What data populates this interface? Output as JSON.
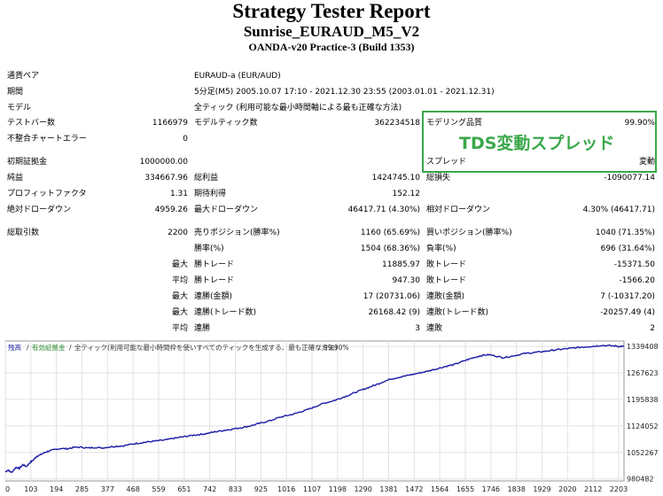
{
  "header": {
    "title": "Strategy Tester Report",
    "subtitle": "Sunrise_EURAUD_M5_V2",
    "server": "OANDA-v20 Practice-3 (Build 1353)"
  },
  "settings": {
    "symbol_label": "通貨ペア",
    "symbol_value": "EURAUD-a (EUR/AUD)",
    "period_label": "期間",
    "period_value": "5分足(M5) 2005.10.07 17:10 - 2021.12.30 23:55 (2003.01.01 - 2021.12.31)",
    "model_label": "モデル",
    "model_value": "全ティック (利用可能な最小時間軸による最も正確な方法)"
  },
  "stats": {
    "bars_label": "テストバー数",
    "bars_value": "1166979",
    "ticks_label": "モデルティック数",
    "ticks_value": "362234518",
    "quality_label": "モデリング品質",
    "quality_value": "99.90%",
    "mismatch_label": "不整合チャートエラー",
    "mismatch_value": "0",
    "spread_label": "スプレッド",
    "spread_value": "変動",
    "highlight_text": "TDS変動スプレッド",
    "deposit_label": "初期証拠金",
    "deposit_value": "1000000.00",
    "net_label": "純益",
    "net_value": "334667.96",
    "gross_profit_label": "総利益",
    "gross_profit_value": "1424745.10",
    "gross_loss_label": "総損失",
    "gross_loss_value": "-1090077.14",
    "pf_label": "プロフィットファクタ",
    "pf_value": "1.31",
    "expected_label": "期待利得",
    "expected_value": "152.12",
    "abs_dd_label": "絶対ドローダウン",
    "abs_dd_value": "4959.26",
    "max_dd_label": "最大ドローダウン",
    "max_dd_value": "46417.71 (4.30%)",
    "rel_dd_label": "相対ドローダウン",
    "rel_dd_value": "4.30% (46417.71)"
  },
  "trades": {
    "total_label": "総取引数",
    "total_value": "2200",
    "short_label": "売りポジション(勝率%)",
    "short_value": "1160 (65.69%)",
    "long_label": "買いポジション(勝率%)",
    "long_value": "1040 (71.35%)",
    "win_label": "勝率(%)",
    "win_value": "1504 (68.36%)",
    "loss_label": "負率(%)",
    "loss_value": "696 (31.64%)",
    "max_word": "最大",
    "avg_word": "平均",
    "win_trade_label": "勝トレード",
    "loss_trade_label": "敗トレード",
    "max_win_value": "11885.97",
    "max_loss_value": "-15371.50",
    "avg_win_value": "947.30",
    "avg_loss_value": "-1566.20",
    "cons_win_amount_label": "連勝(金額)",
    "cons_win_amount_value": "17 (20731.06)",
    "cons_loss_amount_label": "連敗(金額)",
    "cons_loss_amount_value": "7 (-10317.20)",
    "cons_win_count_label": "連勝(トレード数)",
    "cons_win_count_value": "26168.42 (9)",
    "cons_loss_count_label": "連敗(トレード数)",
    "cons_loss_count_value": "-20257.49 (4)",
    "avg_cons_win_label": "連勝",
    "avg_cons_win_value": "3",
    "avg_cons_loss_label": "連敗",
    "avg_cons_loss_value": "2"
  },
  "chart_data": {
    "type": "line",
    "legend_balance": "残高",
    "legend_sep1": "/",
    "legend_lot": "有効証拠金",
    "legend_sep2": "/",
    "legend_model": "全ティック(利用可能な最小時間枠を使いすべてのティックを生成する、最も正確な方法)",
    "legend_sep3": "/",
    "legend_quality": "99.90%",
    "colors": {
      "balance": "#1a1aa6",
      "equity": "#2e8b2e",
      "grid": "#e2e2e2"
    },
    "x_ticks": [
      0,
      103,
      194,
      285,
      377,
      468,
      559,
      651,
      742,
      833,
      925,
      1016,
      1107,
      1198,
      1290,
      1381,
      1472,
      1564,
      1655,
      1746,
      1838,
      1929,
      2020,
      2112,
      2203
    ],
    "y_ticks": [
      980482,
      1052267,
      1124052,
      1195838,
      1267623,
      1339408
    ],
    "xlim": [
      0,
      2200
    ],
    "ylim": [
      975000,
      1354000
    ],
    "points": [
      [
        0,
        1000000
      ],
      [
        10,
        1004000
      ],
      [
        22,
        998000
      ],
      [
        38,
        1012000
      ],
      [
        50,
        1009000
      ],
      [
        62,
        1019000
      ],
      [
        75,
        1014000
      ],
      [
        88,
        1025000
      ],
      [
        100,
        1032000
      ],
      [
        112,
        1042000
      ],
      [
        125,
        1046000
      ],
      [
        140,
        1052000
      ],
      [
        155,
        1056000
      ],
      [
        175,
        1060000
      ],
      [
        198,
        1063000
      ],
      [
        220,
        1062000
      ],
      [
        245,
        1066000
      ],
      [
        270,
        1066500
      ],
      [
        295,
        1064000
      ],
      [
        320,
        1066000
      ],
      [
        345,
        1064500
      ],
      [
        370,
        1067000
      ],
      [
        395,
        1069000
      ],
      [
        420,
        1070000
      ],
      [
        445,
        1074000
      ],
      [
        470,
        1077000
      ],
      [
        495,
        1079500
      ],
      [
        520,
        1082000
      ],
      [
        545,
        1084000
      ],
      [
        570,
        1086000
      ],
      [
        595,
        1090000
      ],
      [
        620,
        1093000
      ],
      [
        645,
        1096000
      ],
      [
        670,
        1099000
      ],
      [
        695,
        1101000
      ],
      [
        720,
        1104000
      ],
      [
        745,
        1108000
      ],
      [
        770,
        1111000
      ],
      [
        795,
        1114000
      ],
      [
        820,
        1117000
      ],
      [
        845,
        1120000
      ],
      [
        870,
        1124000
      ],
      [
        895,
        1129000
      ],
      [
        920,
        1134000
      ],
      [
        945,
        1139000
      ],
      [
        970,
        1146000
      ],
      [
        995,
        1151000
      ],
      [
        1020,
        1155000
      ],
      [
        1045,
        1161000
      ],
      [
        1070,
        1167000
      ],
      [
        1095,
        1174000
      ],
      [
        1120,
        1182000
      ],
      [
        1145,
        1188000
      ],
      [
        1170,
        1193000
      ],
      [
        1195,
        1200000
      ],
      [
        1220,
        1207000
      ],
      [
        1245,
        1215000
      ],
      [
        1270,
        1222000
      ],
      [
        1295,
        1229000
      ],
      [
        1320,
        1236000
      ],
      [
        1345,
        1244000
      ],
      [
        1370,
        1251000
      ],
      [
        1395,
        1255000
      ],
      [
        1420,
        1259000
      ],
      [
        1445,
        1263000
      ],
      [
        1470,
        1267000
      ],
      [
        1495,
        1271000
      ],
      [
        1520,
        1276000
      ],
      [
        1545,
        1281000
      ],
      [
        1570,
        1286000
      ],
      [
        1595,
        1290000
      ],
      [
        1620,
        1297000
      ],
      [
        1645,
        1304000
      ],
      [
        1670,
        1310000
      ],
      [
        1695,
        1315000
      ],
      [
        1720,
        1317000
      ],
      [
        1745,
        1313000
      ],
      [
        1770,
        1309000
      ],
      [
        1795,
        1312000
      ],
      [
        1820,
        1316000
      ],
      [
        1845,
        1320000
      ],
      [
        1870,
        1322000
      ],
      [
        1895,
        1324000
      ],
      [
        1920,
        1326000
      ],
      [
        1945,
        1329000
      ],
      [
        1970,
        1331000
      ],
      [
        1995,
        1333000
      ],
      [
        2020,
        1335000
      ],
      [
        2045,
        1337000
      ],
      [
        2070,
        1338500
      ],
      [
        2095,
        1340000
      ],
      [
        2120,
        1342000
      ],
      [
        2145,
        1341500
      ],
      [
        2170,
        1340500
      ],
      [
        2185,
        1339000
      ],
      [
        2200,
        1339400
      ]
    ]
  }
}
